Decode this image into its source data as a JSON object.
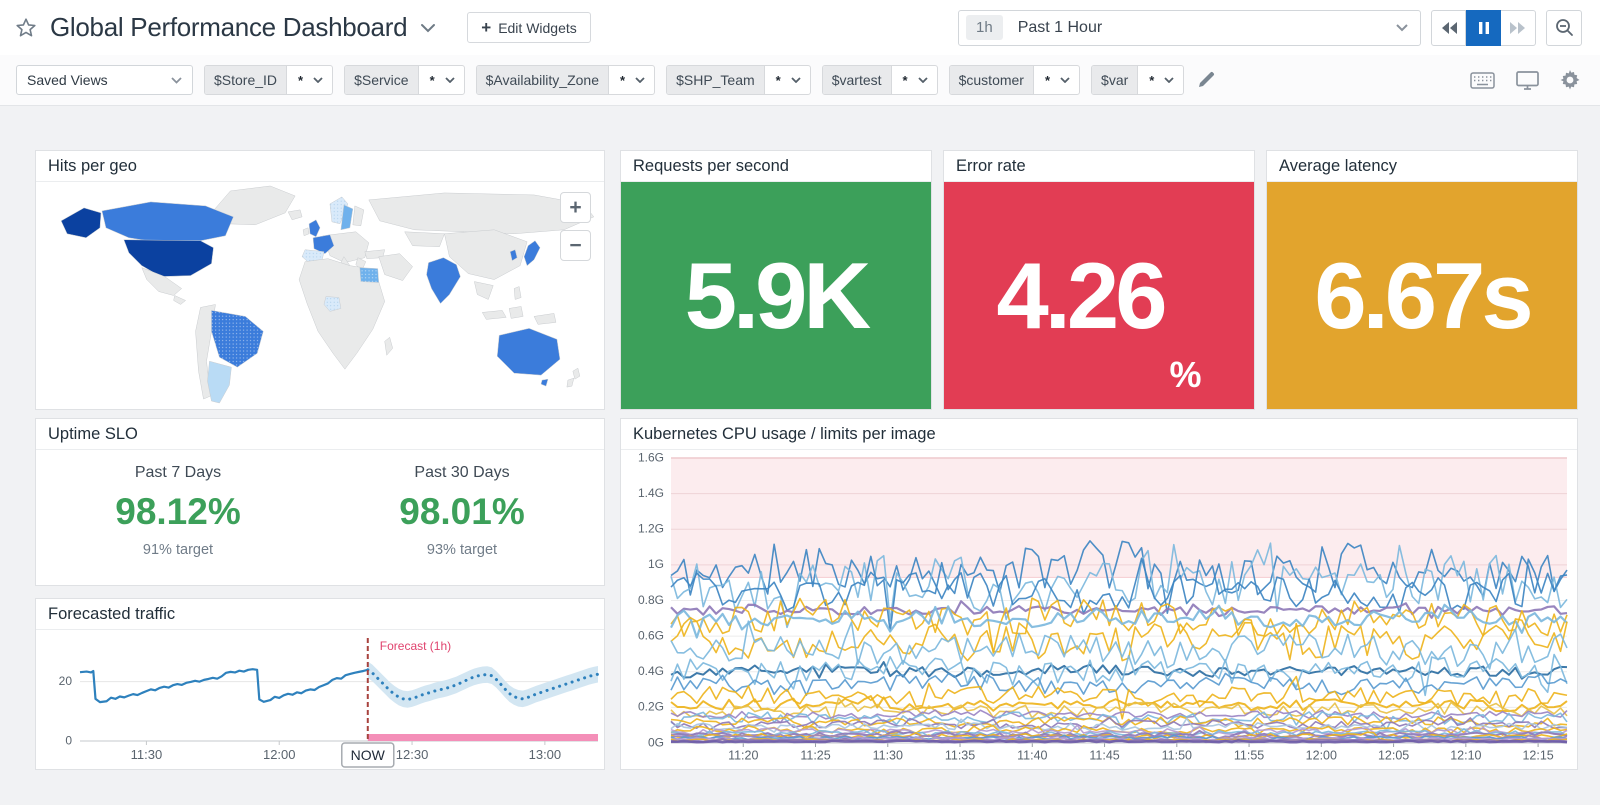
{
  "header": {
    "title": "Global Performance Dashboard",
    "edit_widgets_plus": "+",
    "edit_widgets_label": "Edit Widgets",
    "time_range": {
      "badge": "1h",
      "label": "Past 1 Hour"
    }
  },
  "filter_bar": {
    "saved_views_label": "Saved Views",
    "variables": [
      {
        "name": "$Store_ID",
        "value": "*"
      },
      {
        "name": "$Service",
        "value": "*"
      },
      {
        "name": "$Availability_Zone",
        "value": "*"
      },
      {
        "name": "$SHP_Team",
        "value": "*"
      },
      {
        "name": "$vartest",
        "value": "*"
      },
      {
        "name": "$customer",
        "value": "*"
      },
      {
        "name": "$var",
        "value": "*"
      }
    ]
  },
  "widgets": {
    "hits_per_geo": {
      "title": "Hits per geo",
      "zoom_in_label": "+",
      "zoom_out_label": "−",
      "palette": {
        "highest": "#0b41a0",
        "high": "#3b7cdb",
        "high-dotted": "#3b7cdb",
        "medium": "#6fb1ec",
        "medium-dotted": "#6fb1ec",
        "low": "#b9dbf5",
        "sparse": "#d9eafa",
        "none": "#e9eaea"
      },
      "countries": {
        "united-states": "highest",
        "alaska": "highest",
        "canada": "high",
        "brazil": "high-dotted",
        "argentina": "low",
        "united-kingdom": "high",
        "france": "high",
        "spain": "sparse",
        "norway": "sparse",
        "sweden": "medium",
        "egypt": "medium-dotted",
        "nigeria": "sparse",
        "india": "high",
        "south-korea": "high",
        "japan": "high",
        "australia": "high",
        "tasmania": "high"
      }
    },
    "requests_per_second": {
      "title": "Requests per second",
      "value": "5.9K",
      "bg_color": "#3ca05a"
    },
    "error_rate": {
      "title": "Error rate",
      "value": "4.26",
      "unit": "%",
      "bg_color": "#e23d54"
    },
    "average_latency": {
      "title": "Average latency",
      "value": "6.67s",
      "bg_color": "#e2a42d"
    },
    "uptime_slo": {
      "title": "Uptime SLO",
      "value_color": "#3ca05a",
      "columns": [
        {
          "period": "Past 7 Days",
          "value": "98.12%",
          "target": "91% target"
        },
        {
          "period": "Past 30 Days",
          "value": "98.01%",
          "target": "93% target"
        }
      ]
    },
    "forecasted_traffic": {
      "title": "Forecasted traffic"
    },
    "kubernetes_cpu": {
      "title": "Kubernetes CPU usage / limits per image"
    }
  },
  "chart_data": [
    {
      "id": "forecast",
      "type": "line",
      "title": "Forecasted traffic",
      "ylim": [
        0,
        30
      ],
      "yticks": [
        0,
        20
      ],
      "x_range": [
        0,
        117
      ],
      "xticks": [
        {
          "t": 15,
          "label": "11:30"
        },
        {
          "t": 45,
          "label": "12:00"
        },
        {
          "t": 75,
          "label": "12:30"
        },
        {
          "t": 105,
          "label": "13:00"
        }
      ],
      "now_t": 65,
      "now_label": "NOW",
      "forecast_label": "Forecast (1h)",
      "band_delta": 2.8,
      "colors": {
        "history": "#2e81bd",
        "forecast": "#2e81bd",
        "band": "#d3e6f2",
        "now_line": "#a8423e",
        "forecast_text": "#e0436e",
        "bottom_band": "#f48fb8",
        "grid": "#e6e6e6",
        "axis": "#c6c9cc",
        "tick_text": "#5a646e"
      },
      "history": [
        [
          0,
          23.2
        ],
        [
          1.5,
          23.4
        ],
        [
          2.5,
          23.1
        ],
        [
          3,
          23.6
        ],
        [
          3.5,
          14.2
        ],
        [
          4.5,
          13.1
        ],
        [
          6,
          13.4
        ],
        [
          7,
          14.6
        ],
        [
          8,
          14.2
        ],
        [
          9,
          15.0
        ],
        [
          10,
          14.7
        ],
        [
          11,
          15.3
        ],
        [
          12,
          15.8
        ],
        [
          13,
          15.5
        ],
        [
          14,
          16.2
        ],
        [
          15,
          16.8
        ],
        [
          16,
          17.4
        ],
        [
          17,
          17.1
        ],
        [
          18,
          17.9
        ],
        [
          19,
          18.3
        ],
        [
          20,
          18.0
        ],
        [
          21,
          18.8
        ],
        [
          22,
          19.2
        ],
        [
          23,
          18.9
        ],
        [
          24,
          19.6
        ],
        [
          25,
          19.9
        ],
        [
          26,
          20.3
        ],
        [
          27,
          20.0
        ],
        [
          28,
          20.6
        ],
        [
          29,
          20.9
        ],
        [
          30,
          21.3
        ],
        [
          31,
          21.0
        ],
        [
          32,
          21.8
        ],
        [
          33,
          23.0
        ],
        [
          34,
          23.3
        ],
        [
          35,
          23.1
        ],
        [
          36,
          23.7
        ],
        [
          37,
          23.4
        ],
        [
          38,
          24.0
        ],
        [
          39,
          24.2
        ],
        [
          40,
          24.0
        ],
        [
          40.5,
          14.0
        ],
        [
          41.5,
          13.2
        ],
        [
          43,
          13.8
        ],
        [
          44,
          14.9
        ],
        [
          45,
          14.5
        ],
        [
          46,
          15.4
        ],
        [
          47,
          15.9
        ],
        [
          48,
          15.6
        ],
        [
          49,
          16.4
        ],
        [
          50,
          16.1
        ],
        [
          51,
          17.0
        ],
        [
          52,
          17.4
        ],
        [
          53,
          17.2
        ],
        [
          54,
          18.2
        ],
        [
          55,
          18.8
        ],
        [
          56,
          19.4
        ],
        [
          57,
          20.6
        ],
        [
          58,
          21.2
        ],
        [
          59,
          21.0
        ],
        [
          60,
          22.2
        ],
        [
          61,
          22.6
        ],
        [
          62,
          23.0
        ],
        [
          63,
          23.3
        ],
        [
          64,
          23.6
        ],
        [
          65,
          24.0
        ]
      ],
      "forecast": [
        [
          65,
          24.0
        ],
        [
          66,
          23.0
        ],
        [
          67,
          21.5
        ],
        [
          68,
          20.0
        ],
        [
          69,
          18.5
        ],
        [
          70,
          17.0
        ],
        [
          71,
          15.8
        ],
        [
          72,
          14.8
        ],
        [
          73,
          14.2
        ],
        [
          74,
          14.0
        ],
        [
          75,
          14.3
        ],
        [
          76,
          14.8
        ],
        [
          77,
          15.4
        ],
        [
          78,
          15.9
        ],
        [
          79,
          16.3
        ],
        [
          80,
          16.8
        ],
        [
          81,
          17.2
        ],
        [
          82,
          17.5
        ],
        [
          83,
          17.9
        ],
        [
          84,
          18.4
        ],
        [
          85,
          18.9
        ],
        [
          86,
          19.6
        ],
        [
          87,
          20.3
        ],
        [
          88,
          21.0
        ],
        [
          89,
          21.6
        ],
        [
          90,
          22.0
        ],
        [
          91,
          22.3
        ],
        [
          92,
          22.4
        ],
        [
          93,
          22.0
        ],
        [
          94,
          20.8
        ],
        [
          95,
          19.2
        ],
        [
          96,
          17.5
        ],
        [
          97,
          16.0
        ],
        [
          98,
          15.0
        ],
        [
          99,
          14.4
        ],
        [
          100,
          14.2
        ],
        [
          101,
          14.6
        ],
        [
          102,
          15.2
        ],
        [
          103,
          15.8
        ],
        [
          104,
          16.3
        ],
        [
          105,
          16.8
        ],
        [
          106,
          17.3
        ],
        [
          107,
          17.8
        ],
        [
          108,
          18.3
        ],
        [
          109,
          18.8
        ],
        [
          110,
          19.3
        ],
        [
          111,
          19.8
        ],
        [
          112,
          20.3
        ],
        [
          113,
          20.8
        ],
        [
          114,
          21.3
        ],
        [
          115,
          21.8
        ],
        [
          116,
          22.2
        ],
        [
          117,
          22.5
        ]
      ]
    },
    {
      "id": "kubernetes",
      "type": "line-multi",
      "title": "Kubernetes CPU usage / limits per image",
      "ylim": [
        0,
        1.6
      ],
      "ytick_step": 0.2,
      "ytick_labels": [
        "0G",
        "0.2G",
        "0.4G",
        "0.6G",
        "0.8G",
        "1G",
        "1.2G",
        "1.4G",
        "1.6G"
      ],
      "x_range_minutes": [
        0,
        62
      ],
      "xtick_start": 5,
      "xtick_step": 5,
      "xtick_labels": [
        "11:20",
        "11:25",
        "11:30",
        "11:35",
        "11:40",
        "11:45",
        "11:50",
        "11:55",
        "12:00",
        "12:05",
        "12:10",
        "12:15"
      ],
      "threshold_zone": {
        "from": 0.93,
        "to": 1.6,
        "fill": "#fcecee",
        "top_line": "#efb3ba",
        "bottom_line": "#f5ccd1"
      },
      "points_per_series": 140,
      "grid_color": "#ececec",
      "grid_color_in_zone": "#eed3d6",
      "axis_color": "#c6c9cc",
      "tick_text_color": "#5a646e",
      "series": [
        {
          "color": "#3e86c2",
          "base": 0.97,
          "amp": 0.13,
          "seed": 11
        },
        {
          "color": "#7db9dd",
          "base": 0.9,
          "amp": 0.15,
          "seed": 22
        },
        {
          "color": "#3e86c2",
          "base": 0.84,
          "amp": 0.1,
          "seed": 33
        },
        {
          "color": "#8f7bb8",
          "base": 0.745,
          "amp": 0.025,
          "seed": 44,
          "width": 2.2
        },
        {
          "color": "#eeb41e",
          "base": 0.7,
          "amp": 0.09,
          "seed": 55
        },
        {
          "color": "#7db9dd",
          "base": 0.7,
          "amp": 0.04,
          "seed": 66,
          "width": 2.2
        },
        {
          "color": "#eeb41e",
          "base": 0.58,
          "amp": 0.1,
          "seed": 77
        },
        {
          "color": "#7db9dd",
          "base": 0.52,
          "amp": 0.08,
          "seed": 88
        },
        {
          "color": "#2e6fa3",
          "base": 0.405,
          "amp": 0.03,
          "seed": 99,
          "width": 2
        },
        {
          "color": "#7db9dd",
          "base": 0.4,
          "amp": 0.07,
          "seed": 110
        },
        {
          "color": "#5a9bd0",
          "base": 0.33,
          "amp": 0.05,
          "seed": 121
        },
        {
          "color": "#eeb41e",
          "base": 0.26,
          "amp": 0.05,
          "seed": 132
        },
        {
          "color": "#eeb41e",
          "base": 0.215,
          "amp": 0.03,
          "seed": 143,
          "width": 2
        },
        {
          "color": "#e8c14a",
          "base": 0.185,
          "amp": 0.035,
          "seed": 154
        },
        {
          "color": "#9b86c4",
          "base": 0.16,
          "amp": 0.02,
          "seed": 165
        },
        {
          "color": "#7db9dd",
          "base": 0.14,
          "amp": 0.03,
          "seed": 176
        },
        {
          "color": "#eeb41e",
          "base": 0.12,
          "amp": 0.025,
          "seed": 187
        },
        {
          "color": "#8f7bb8",
          "base": 0.105,
          "amp": 0.02,
          "seed": 198
        },
        {
          "color": "#a9c7e0",
          "base": 0.09,
          "amp": 0.02,
          "seed": 209
        },
        {
          "color": "#eeb41e",
          "base": 0.075,
          "amp": 0.018,
          "seed": 220
        },
        {
          "color": "#b49bd2",
          "base": 0.065,
          "amp": 0.015,
          "seed": 231
        },
        {
          "color": "#7db9dd",
          "base": 0.055,
          "amp": 0.014,
          "seed": 242
        },
        {
          "color": "#8f7bb8",
          "base": 0.048,
          "amp": 0.012,
          "seed": 253,
          "width": 2
        },
        {
          "color": "#eeb41e",
          "base": 0.04,
          "amp": 0.01,
          "seed": 264
        },
        {
          "color": "#9b86c4",
          "base": 0.034,
          "amp": 0.009,
          "seed": 275
        },
        {
          "color": "#5a9bd0",
          "base": 0.028,
          "amp": 0.008,
          "seed": 286
        },
        {
          "color": "#b49bd2",
          "base": 0.022,
          "amp": 0.007,
          "seed": 297,
          "width": 2
        },
        {
          "color": "#eeb41e",
          "base": 0.016,
          "amp": 0.006,
          "seed": 308
        },
        {
          "color": "#8f7bb8",
          "base": 0.012,
          "amp": 0.005,
          "seed": 319,
          "width": 2.5
        },
        {
          "color": "#6f5da8",
          "base": 0.008,
          "amp": 0.004,
          "seed": 330,
          "width": 2.5
        }
      ]
    }
  ]
}
